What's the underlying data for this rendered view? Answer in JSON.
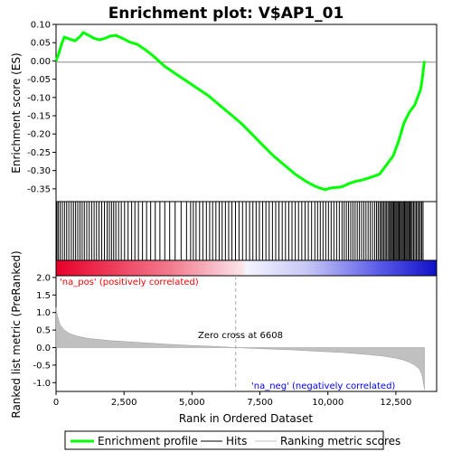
{
  "chart_data": {
    "type": "line",
    "title": "Enrichment plot: V$AP1_01",
    "xlabel": "Rank in Ordered Dataset",
    "xlim": [
      0,
      14000
    ],
    "x_ticks": [
      "0",
      "2,500",
      "5,000",
      "7,500",
      "10,000",
      "12,500"
    ],
    "x_tick_values": [
      0,
      2500,
      5000,
      7500,
      10000,
      12500
    ],
    "n_genes": 13550,
    "colors": {
      "es_line": "#00ff00",
      "hit": "#000000",
      "metric_fill": "#c0c0c0",
      "pos_label": "#ff0000",
      "neg_label": "#0000ff",
      "zero_line": "#aaaaaa",
      "frame": "#000000"
    },
    "es_panel": {
      "ylabel": "Enrichment score (ES)",
      "ylim": [
        -0.385,
        0.1
      ],
      "y_ticks": [
        "0.10",
        "0.05",
        "0.00",
        "-0.05",
        "-0.10",
        "-0.15",
        "-0.20",
        "-0.25",
        "-0.30",
        "-0.35"
      ],
      "y_tick_values": [
        0.1,
        0.05,
        0.0,
        -0.05,
        -0.1,
        -0.15,
        -0.2,
        -0.25,
        -0.3,
        -0.35
      ],
      "series": [
        {
          "x": [
            0,
            100,
            200,
            300,
            500,
            700,
            900,
            1000,
            1200,
            1400,
            1600,
            1800,
            2000,
            2200,
            2500,
            2700,
            3000,
            3300,
            3600,
            4000,
            4400,
            4800,
            5200,
            5600,
            6000,
            6400,
            6800,
            7200,
            7600,
            8000,
            8400,
            8800,
            9200,
            9500,
            9700,
            9900,
            10100,
            10500,
            10800,
            11000,
            11300,
            11600,
            11900,
            12000,
            12100,
            12200,
            12300,
            12400,
            12600,
            12800,
            13000,
            13200,
            13300,
            13400,
            13450,
            13500,
            13550
          ],
          "y": [
            0.0,
            0.02,
            0.045,
            0.065,
            0.06,
            0.055,
            0.068,
            0.078,
            0.07,
            0.062,
            0.058,
            0.062,
            0.068,
            0.07,
            0.06,
            0.052,
            0.045,
            0.03,
            0.012,
            -0.015,
            -0.035,
            -0.055,
            -0.075,
            -0.095,
            -0.12,
            -0.145,
            -0.17,
            -0.2,
            -0.23,
            -0.26,
            -0.285,
            -0.31,
            -0.33,
            -0.342,
            -0.348,
            -0.352,
            -0.348,
            -0.345,
            -0.335,
            -0.33,
            -0.325,
            -0.318,
            -0.31,
            -0.3,
            -0.29,
            -0.28,
            -0.27,
            -0.26,
            -0.22,
            -0.17,
            -0.14,
            -0.12,
            -0.1,
            -0.08,
            -0.06,
            -0.03,
            0.0
          ]
        }
      ]
    },
    "hits_panel": {
      "hit_ranks": [
        30,
        80,
        150,
        230,
        310,
        390,
        470,
        560,
        640,
        720,
        800,
        880,
        960,
        1040,
        1130,
        1220,
        1310,
        1400,
        1490,
        1580,
        1680,
        1780,
        1880,
        1960,
        2040,
        2120,
        2200,
        2300,
        2400,
        2520,
        2650,
        2780,
        2900,
        3030,
        3180,
        3330,
        3480,
        3650,
        3820,
        4000,
        4180,
        4380,
        4600,
        4800,
        4950,
        5050,
        5150,
        5280,
        5400,
        5530,
        5650,
        5760,
        5880,
        6000,
        6110,
        6230,
        6350,
        6470,
        6600,
        6730,
        6860,
        6990,
        7120,
        7240,
        7360,
        7480,
        7600,
        7720,
        7840,
        7960,
        8080,
        8200,
        8320,
        8440,
        8560,
        8680,
        8800,
        8920,
        9040,
        9160,
        9280,
        9400,
        9520,
        9620,
        9720,
        9820,
        9920,
        10020,
        10120,
        10220,
        10320,
        10420,
        10520,
        10600,
        10680,
        10760,
        10840,
        10920,
        11000,
        11080,
        11160,
        11240,
        11320,
        11400,
        11480,
        11560,
        11640,
        11720,
        11790,
        11850,
        11910,
        11960,
        12010,
        12060,
        12110,
        12160,
        12210,
        12260,
        12300,
        12340,
        12380,
        12420,
        12460,
        12500,
        12540,
        12580,
        12620,
        12660,
        12700,
        12740,
        12780,
        12820,
        12860,
        12900,
        12940,
        12980,
        13020,
        13060,
        13100,
        13150,
        13200,
        13250,
        13300,
        13350,
        13400,
        13450,
        13500
      ]
    },
    "metric_panel": {
      "ylabel": "Ranked list metric (PreRanked)",
      "ylim": [
        -1.25,
        2.05
      ],
      "y_ticks": [
        "2.0",
        "1.5",
        "1.0",
        "0.5",
        "0.0",
        "-0.5",
        "-1.0"
      ],
      "y_tick_values": [
        2.0,
        1.5,
        1.0,
        0.5,
        0.0,
        -0.5,
        -1.0
      ],
      "x": [
        0,
        50,
        150,
        300,
        500,
        800,
        1200,
        2000,
        3000,
        4000,
        5000,
        6000,
        6608,
        7500,
        8500,
        9500,
        10500,
        11500,
        12000,
        12500,
        12800,
        13000,
        13200,
        13350,
        13450,
        13500,
        13550
      ],
      "y": [
        1.15,
        0.9,
        0.65,
        0.5,
        0.4,
        0.32,
        0.26,
        0.2,
        0.15,
        0.1,
        0.06,
        0.03,
        0.0,
        -0.03,
        -0.06,
        -0.1,
        -0.14,
        -0.2,
        -0.24,
        -0.3,
        -0.36,
        -0.42,
        -0.5,
        -0.6,
        -0.75,
        -0.95,
        -1.2
      ],
      "zero_cross": 6608,
      "zero_cross_label": "Zero cross at 6608",
      "pos_label": "'na_pos' (positively correlated)",
      "neg_label": "'na_neg' (negatively correlated)"
    },
    "legend": {
      "placement": "bottom",
      "entries": [
        "Enrichment profile",
        "Hits",
        "Ranking metric scores"
      ]
    }
  }
}
